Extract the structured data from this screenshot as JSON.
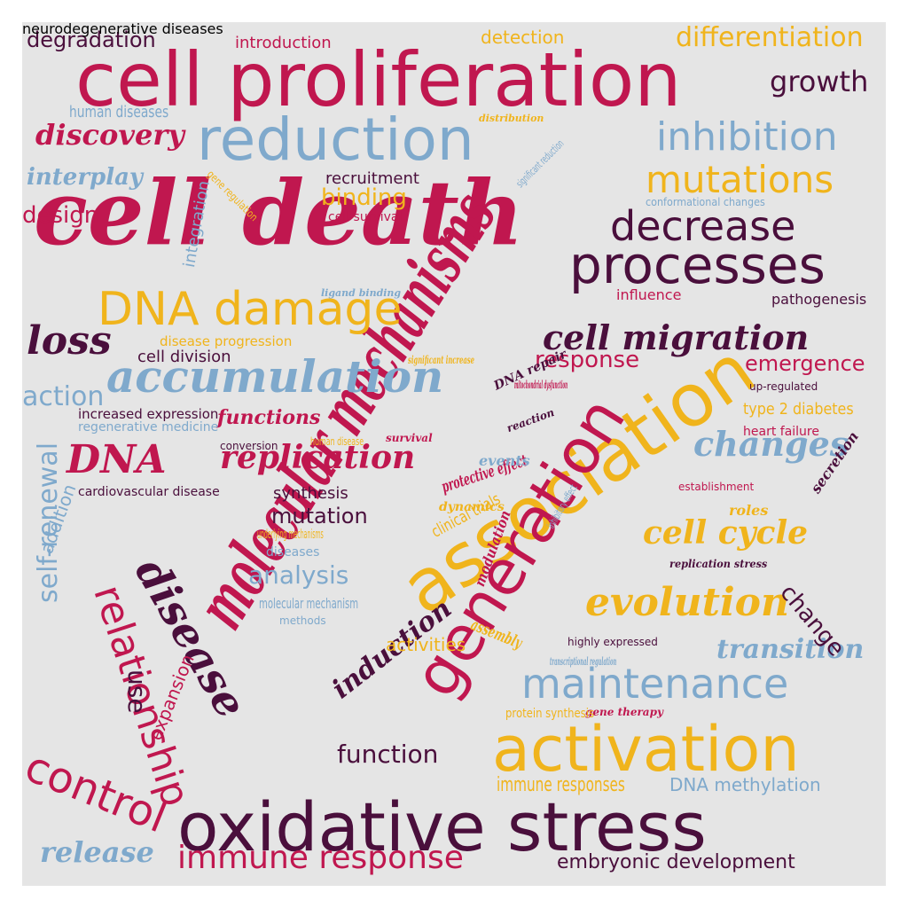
{
  "palette": {
    "crimson": "#c0174f",
    "plum": "#4a0f3c",
    "gold": "#f0b41c",
    "steel": "#7fa9cc",
    "background": "#e5e5e5"
  },
  "words": [
    {
      "text": "cell proliferation",
      "style": "sans",
      "color": "crimson"
    },
    {
      "text": "cell death",
      "style": "bold",
      "color": "crimson"
    },
    {
      "text": "molecular mechanisms",
      "style": "bold",
      "color": "crimson"
    },
    {
      "text": "oxidative stress",
      "style": "sans",
      "color": "plum"
    },
    {
      "text": "association",
      "style": "sans",
      "color": "gold"
    },
    {
      "text": "generation",
      "style": "sans",
      "color": "crimson"
    },
    {
      "text": "reduction",
      "style": "sans",
      "color": "steel"
    },
    {
      "text": "activation",
      "style": "sans",
      "color": "gold"
    },
    {
      "text": "DNA damage",
      "style": "sans",
      "color": "gold"
    },
    {
      "text": "processes",
      "style": "sans",
      "color": "plum"
    },
    {
      "text": "accumulation",
      "style": "bold",
      "color": "steel"
    },
    {
      "text": "disease",
      "style": "bold",
      "color": "plum"
    },
    {
      "text": "maintenance",
      "style": "sans",
      "color": "steel"
    },
    {
      "text": "relationship",
      "style": "sans",
      "color": "crimson"
    },
    {
      "text": "decrease",
      "style": "sans",
      "color": "plum"
    },
    {
      "text": "control",
      "style": "sans",
      "color": "crimson"
    },
    {
      "text": "immune response",
      "style": "sans",
      "color": "crimson"
    },
    {
      "text": "evolution",
      "style": "bold",
      "color": "gold"
    },
    {
      "text": "cell migration",
      "style": "bold",
      "color": "plum"
    },
    {
      "text": "mutations",
      "style": "sans",
      "color": "gold"
    },
    {
      "text": "inhibition",
      "style": "sans",
      "color": "steel"
    },
    {
      "text": "replication",
      "style": "bold",
      "color": "crimson"
    },
    {
      "text": "DNA",
      "style": "bold",
      "color": "crimson"
    },
    {
      "text": "changes",
      "style": "bold",
      "color": "steel"
    },
    {
      "text": "cell cycle",
      "style": "bold",
      "color": "gold"
    },
    {
      "text": "loss",
      "style": "bold",
      "color": "plum"
    },
    {
      "text": "growth",
      "style": "sans",
      "color": "plum"
    },
    {
      "text": "differentiation",
      "style": "sans",
      "color": "gold"
    },
    {
      "text": "discovery",
      "style": "bold",
      "color": "crimson"
    },
    {
      "text": "self-renewal",
      "style": "sans",
      "color": "steel"
    },
    {
      "text": "induction",
      "style": "bold",
      "color": "plum"
    },
    {
      "text": "transition",
      "style": "bold",
      "color": "steel"
    },
    {
      "text": "response",
      "style": "sans",
      "color": "crimson"
    },
    {
      "text": "emergence",
      "style": "sans",
      "color": "crimson"
    },
    {
      "text": "change",
      "style": "sans",
      "color": "plum"
    },
    {
      "text": "function",
      "style": "sans",
      "color": "plum"
    },
    {
      "text": "embryonic development",
      "style": "sans",
      "color": "plum"
    },
    {
      "text": "degradation",
      "style": "sans",
      "color": "plum"
    },
    {
      "text": "release",
      "style": "bold",
      "color": "steel"
    },
    {
      "text": "action",
      "style": "sans",
      "color": "steel"
    },
    {
      "text": "interplay",
      "style": "bold",
      "color": "steel"
    },
    {
      "text": "design",
      "style": "sans",
      "color": "crimson"
    },
    {
      "text": "binding",
      "style": "sans",
      "color": "gold"
    },
    {
      "text": "analysis",
      "style": "sans",
      "color": "steel"
    },
    {
      "text": "mutation",
      "style": "sans",
      "color": "plum"
    },
    {
      "text": "use",
      "style": "sans",
      "color": "plum"
    },
    {
      "text": "functions",
      "style": "bold",
      "color": "crimson"
    },
    {
      "text": "DNA methylation",
      "style": "sans",
      "color": "steel"
    },
    {
      "text": "immune responses",
      "style": "sans",
      "color": "gold"
    },
    {
      "text": "detection",
      "style": "sans",
      "color": "gold"
    },
    {
      "text": "introduction",
      "style": "sans",
      "color": "crimson"
    },
    {
      "text": "human diseases",
      "style": "sans",
      "color": "steel"
    },
    {
      "text": "expansion",
      "style": "sans",
      "color": "crimson"
    },
    {
      "text": "integration",
      "style": "sans",
      "color": "steel"
    },
    {
      "text": "activities",
      "style": "sans",
      "color": "gold"
    },
    {
      "text": "synthesis",
      "style": "sans",
      "color": "plum"
    },
    {
      "text": "type 2 diabetes",
      "style": "sans",
      "color": "gold"
    },
    {
      "text": "cell division",
      "style": "sans",
      "color": "plum"
    },
    {
      "text": "molecular mechanism",
      "style": "sans",
      "color": "steel"
    },
    {
      "text": "recruitment",
      "style": "sans",
      "color": "plum"
    },
    {
      "text": "clinical trials",
      "style": "sans",
      "color": "gold"
    },
    {
      "text": "addition",
      "style": "sans",
      "color": "steel"
    },
    {
      "text": "protective effect",
      "style": "bold",
      "color": "crimson"
    },
    {
      "text": "assembly",
      "style": "bold",
      "color": "gold"
    },
    {
      "text": "roles",
      "style": "bold",
      "color": "gold"
    },
    {
      "text": "secretion",
      "style": "bold",
      "color": "plum"
    },
    {
      "text": "events",
      "style": "bold",
      "color": "steel"
    },
    {
      "text": "pathogenesis",
      "style": "sans",
      "color": "plum"
    },
    {
      "text": "modulation",
      "style": "bold",
      "color": "crimson"
    },
    {
      "text": "influence",
      "style": "sans",
      "color": "crimson"
    },
    {
      "text": "disease progression",
      "style": "sans",
      "color": "gold"
    },
    {
      "text": "increased expression",
      "style": "sans",
      "color": "plum"
    },
    {
      "text": "regenerative medicine",
      "style": "sans",
      "color": "steel"
    },
    {
      "text": "cardiovascular disease",
      "style": "sans",
      "color": "plum"
    },
    {
      "text": "underlying mechanisms",
      "style": "sans",
      "color": "gold"
    },
    {
      "text": "diseases",
      "style": "sans",
      "color": "steel"
    },
    {
      "text": "dynamics",
      "style": "bold",
      "color": "gold"
    },
    {
      "text": "heart failure",
      "style": "sans",
      "color": "crimson"
    },
    {
      "text": "human disease",
      "style": "sans",
      "color": "gold"
    },
    {
      "text": "survival",
      "style": "bold",
      "color": "crimson"
    },
    {
      "text": "conversion",
      "style": "sans",
      "color": "plum"
    },
    {
      "text": "DNA repair",
      "style": "bold",
      "color": "plum"
    },
    {
      "text": "mitochondrial dysfunction",
      "style": "bold",
      "color": "crimson"
    },
    {
      "text": "reaction",
      "style": "bold",
      "color": "plum"
    },
    {
      "text": "establishment",
      "style": "sans",
      "color": "crimson"
    },
    {
      "text": "replication stress",
      "style": "bold",
      "color": "plum"
    },
    {
      "text": "inhibitory effect",
      "style": "sans",
      "color": "steel"
    },
    {
      "text": "methods",
      "style": "sans",
      "color": "steel"
    },
    {
      "text": "highly expressed",
      "style": "sans",
      "color": "plum"
    },
    {
      "text": "transcriptional regulation",
      "style": "bold",
      "color": "steel"
    },
    {
      "text": "gene therapy",
      "style": "bold",
      "color": "crimson"
    },
    {
      "text": "protein synthesis",
      "style": "sans",
      "color": "gold"
    },
    {
      "text": "up-regulated",
      "style": "sans",
      "color": "plum"
    },
    {
      "text": "significant increase",
      "style": "bold",
      "color": "gold"
    },
    {
      "text": "ligand binding",
      "style": "bold",
      "color": "steel"
    },
    {
      "text": "conformational changes",
      "style": "sans",
      "color": "steel"
    },
    {
      "text": "significant reduction",
      "style": "sans",
      "color": "steel"
    },
    {
      "text": "cell survival",
      "style": "sans",
      "color": "crimson"
    },
    {
      "text": "gene regulation",
      "style": "sans",
      "color": "gold"
    },
    {
      "text": "distribution",
      "style": "bold",
      "color": "gold"
    },
    {
      "text": "neurodegenerative diseases",
      "style": "sans",
      "color": "gold"
    }
  ]
}
